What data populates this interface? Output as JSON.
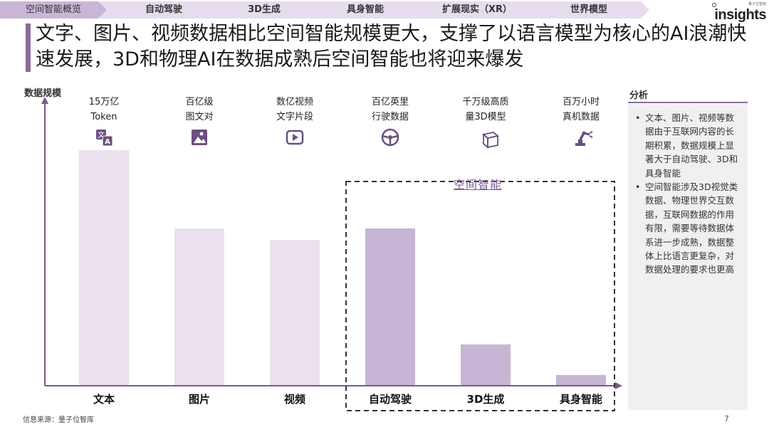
{
  "nav": {
    "tabs": [
      "空间智能概览",
      "自动驾驶",
      "3D生成",
      "具身智能",
      "扩展现实（XR）",
      "世界模型"
    ]
  },
  "logo": {
    "small": "量子位智库",
    "text": "insights"
  },
  "title": "文字、图片、视频数据相比空间智能规模更大，支撑了以语言模型为核心的AI浪潮快速发展，3D和物理AI在数据成熟后空间智能也将迎来爆发",
  "chart_data": {
    "type": "bar",
    "ylabel": "数据规模",
    "categories": [
      "文本",
      "图片",
      "视频",
      "自动驾驶",
      "3D生成",
      "具身智能"
    ],
    "values": [
      330,
      220,
      204,
      220,
      57,
      14
    ],
    "scale_headers": [
      [
        "15万亿",
        "Token"
      ],
      [
        "百亿级",
        "图文对"
      ],
      [
        "数亿视频",
        "文字片段"
      ],
      [
        "百亿英里",
        "行驶数据"
      ],
      [
        "千万级高质",
        "量3D模型"
      ],
      [
        "百万小时",
        "真机数据"
      ]
    ],
    "icons": [
      "translate-icon",
      "image-icon",
      "video-play-icon",
      "steering-wheel-icon",
      "cube-icon",
      "robot-arm-icon"
    ],
    "group_label": "空间智能",
    "colors": {
      "light_bar": "#ebe1ef",
      "dark_bar": "#c8b4d4",
      "axis": "#7a5a8e",
      "group_border": "#333333"
    }
  },
  "analysis": {
    "title": "分析",
    "bullets": [
      "文本、图片、视频等数据由于互联网内容的长期积累，数据规模上显著大于自动驾驶、3D和具身智能",
      "空间智能涉及3D视觉类数据、物理世界交互数据，互联网数据的作用有限，需要等待数据体系进一步成熟，数据整体上比语言更复杂，对数据处理的要求也更高"
    ]
  },
  "footer": {
    "source": "信息来源：量子位智库",
    "page": "7"
  }
}
